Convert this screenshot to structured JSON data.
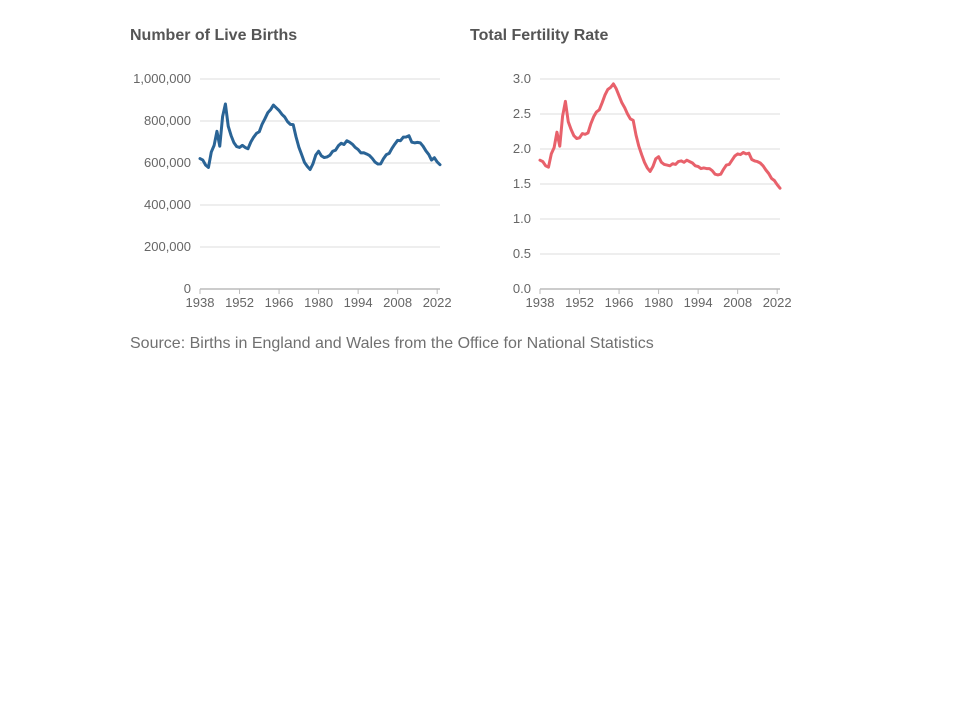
{
  "colors": {
    "births": "#2a6496",
    "tfr": "#e8616b",
    "grid": "#dddddd",
    "axis": "#bbbbbb",
    "text": "#666666"
  },
  "source": "Source: Births in England and Wales from the Office for National Statistics",
  "chart_data": [
    {
      "type": "line",
      "title": "Number of Live Births",
      "xlabel": "",
      "ylabel": "",
      "xlim": [
        1938,
        2023
      ],
      "ylim": [
        0,
        1000000
      ],
      "grid": true,
      "yticks": [
        0,
        200000,
        400000,
        600000,
        800000,
        1000000
      ],
      "ytick_labels": [
        "0",
        "200,000",
        "400,000",
        "600,000",
        "800,000",
        "1,000,000"
      ],
      "xticks": [
        1938,
        1952,
        1966,
        1980,
        1994,
        2008,
        2022
      ],
      "xtick_labels": [
        "1938",
        "1952",
        "1966",
        "1980",
        "1994",
        "2008",
        "2022"
      ],
      "series": [
        {
          "color": "#2a6496",
          "x": [
            1938,
            1939,
            1940,
            1941,
            1942,
            1943,
            1944,
            1945,
            1946,
            1947,
            1948,
            1949,
            1950,
            1951,
            1952,
            1953,
            1954,
            1955,
            1956,
            1957,
            1958,
            1959,
            1960,
            1961,
            1962,
            1963,
            1964,
            1965,
            1966,
            1967,
            1968,
            1969,
            1970,
            1971,
            1972,
            1973,
            1974,
            1975,
            1976,
            1977,
            1978,
            1979,
            1980,
            1981,
            1982,
            1983,
            1984,
            1985,
            1986,
            1987,
            1988,
            1989,
            1990,
            1991,
            1992,
            1993,
            1994,
            1995,
            1996,
            1997,
            1998,
            1999,
            2000,
            2001,
            2002,
            2003,
            2004,
            2005,
            2006,
            2007,
            2008,
            2009,
            2010,
            2011,
            2012,
            2013,
            2014,
            2015,
            2016,
            2017,
            2018,
            2019,
            2020,
            2021,
            2022,
            2023
          ],
          "y": [
            621000,
            614000,
            590000,
            579000,
            652000,
            684000,
            751000,
            680000,
            821000,
            881000,
            775000,
            731000,
            697000,
            678000,
            674000,
            684000,
            674000,
            668000,
            700000,
            723000,
            741000,
            749000,
            785000,
            811000,
            839000,
            854000,
            876000,
            863000,
            850000,
            832000,
            819000,
            797000,
            784000,
            783000,
            725000,
            676000,
            640000,
            603000,
            584000,
            569000,
            596000,
            638000,
            656000,
            634000,
            626000,
            629000,
            637000,
            656000,
            661000,
            682000,
            694000,
            688000,
            706000,
            699000,
            689000,
            674000,
            664000,
            648000,
            649000,
            643000,
            636000,
            622000,
            604000,
            595000,
            596000,
            621000,
            640000,
            646000,
            670000,
            690000,
            708000,
            706000,
            723000,
            724000,
            730000,
            699000,
            696000,
            698000,
            696000,
            680000,
            658000,
            641000,
            614000,
            625000,
            605000,
            592000
          ]
        }
      ]
    },
    {
      "type": "line",
      "title": "Total Fertility Rate",
      "xlabel": "",
      "ylabel": "",
      "xlim": [
        1938,
        2023
      ],
      "ylim": [
        0,
        3
      ],
      "grid": true,
      "yticks": [
        0,
        0.5,
        1,
        1.5,
        2,
        2.5,
        3
      ],
      "ytick_labels": [
        "0.0",
        "0.5",
        "1.0",
        "1.5",
        "2.0",
        "2.5",
        "3.0"
      ],
      "xticks": [
        1938,
        1952,
        1966,
        1980,
        1994,
        2008,
        2022
      ],
      "xtick_labels": [
        "1938",
        "1952",
        "1966",
        "1980",
        "1994",
        "2008",
        "2022"
      ],
      "series": [
        {
          "color": "#e8616b",
          "x": [
            1938,
            1939,
            1940,
            1941,
            1942,
            1943,
            1944,
            1945,
            1946,
            1947,
            1948,
            1949,
            1950,
            1951,
            1952,
            1953,
            1954,
            1955,
            1956,
            1957,
            1958,
            1959,
            1960,
            1961,
            1962,
            1963,
            1964,
            1965,
            1966,
            1967,
            1968,
            1969,
            1970,
            1971,
            1972,
            1973,
            1974,
            1975,
            1976,
            1977,
            1978,
            1979,
            1980,
            1981,
            1982,
            1983,
            1984,
            1985,
            1986,
            1987,
            1988,
            1989,
            1990,
            1991,
            1992,
            1993,
            1994,
            1995,
            1996,
            1997,
            1998,
            1999,
            2000,
            2001,
            2002,
            2003,
            2004,
            2005,
            2006,
            2007,
            2008,
            2009,
            2010,
            2011,
            2012,
            2013,
            2014,
            2015,
            2016,
            2017,
            2018,
            2019,
            2020,
            2021,
            2022,
            2023
          ],
          "y": [
            1.84,
            1.82,
            1.76,
            1.74,
            1.93,
            2.02,
            2.24,
            2.04,
            2.47,
            2.68,
            2.39,
            2.28,
            2.19,
            2.15,
            2.16,
            2.22,
            2.21,
            2.23,
            2.36,
            2.46,
            2.53,
            2.56,
            2.66,
            2.77,
            2.85,
            2.88,
            2.93,
            2.86,
            2.76,
            2.66,
            2.59,
            2.5,
            2.43,
            2.41,
            2.2,
            2.04,
            1.92,
            1.81,
            1.73,
            1.68,
            1.75,
            1.86,
            1.89,
            1.81,
            1.78,
            1.77,
            1.76,
            1.79,
            1.78,
            1.82,
            1.83,
            1.81,
            1.84,
            1.82,
            1.8,
            1.76,
            1.75,
            1.72,
            1.73,
            1.72,
            1.72,
            1.69,
            1.64,
            1.63,
            1.64,
            1.71,
            1.77,
            1.78,
            1.84,
            1.9,
            1.93,
            1.92,
            1.95,
            1.93,
            1.94,
            1.85,
            1.83,
            1.82,
            1.8,
            1.76,
            1.7,
            1.65,
            1.58,
            1.55,
            1.49,
            1.44
          ]
        }
      ]
    }
  ]
}
